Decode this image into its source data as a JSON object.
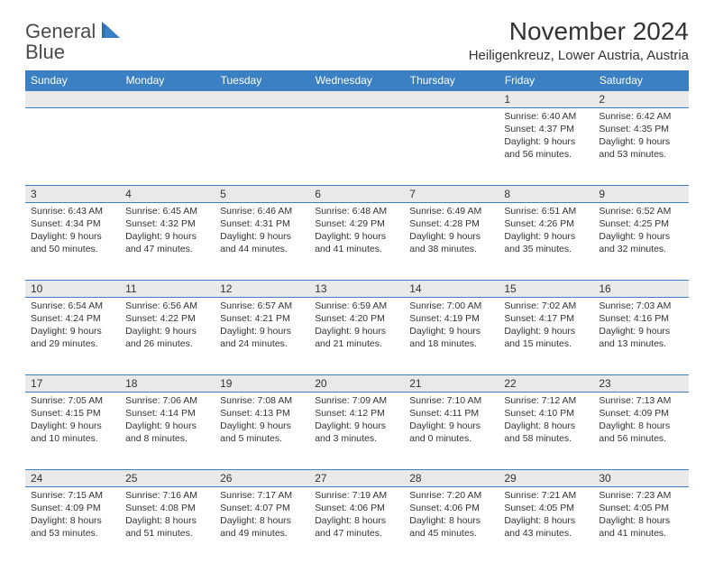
{
  "brand": {
    "line1": "General",
    "line2": "Blue"
  },
  "title": "November 2024",
  "location": "Heiligenkreuz, Lower Austria, Austria",
  "colors": {
    "header_bg": "#3a80c3",
    "header_text": "#ffffff",
    "daynum_bg": "#e9e9e9",
    "border": "#3a80c3",
    "text": "#333333",
    "brand_blue": "#2f6fb0"
  },
  "day_headers": [
    "Sunday",
    "Monday",
    "Tuesday",
    "Wednesday",
    "Thursday",
    "Friday",
    "Saturday"
  ],
  "weeks": [
    [
      {
        "n": "",
        "sunrise": "",
        "sunset": "",
        "daylight": ""
      },
      {
        "n": "",
        "sunrise": "",
        "sunset": "",
        "daylight": ""
      },
      {
        "n": "",
        "sunrise": "",
        "sunset": "",
        "daylight": ""
      },
      {
        "n": "",
        "sunrise": "",
        "sunset": "",
        "daylight": ""
      },
      {
        "n": "",
        "sunrise": "",
        "sunset": "",
        "daylight": ""
      },
      {
        "n": "1",
        "sunrise": "Sunrise: 6:40 AM",
        "sunset": "Sunset: 4:37 PM",
        "daylight": "Daylight: 9 hours and 56 minutes."
      },
      {
        "n": "2",
        "sunrise": "Sunrise: 6:42 AM",
        "sunset": "Sunset: 4:35 PM",
        "daylight": "Daylight: 9 hours and 53 minutes."
      }
    ],
    [
      {
        "n": "3",
        "sunrise": "Sunrise: 6:43 AM",
        "sunset": "Sunset: 4:34 PM",
        "daylight": "Daylight: 9 hours and 50 minutes."
      },
      {
        "n": "4",
        "sunrise": "Sunrise: 6:45 AM",
        "sunset": "Sunset: 4:32 PM",
        "daylight": "Daylight: 9 hours and 47 minutes."
      },
      {
        "n": "5",
        "sunrise": "Sunrise: 6:46 AM",
        "sunset": "Sunset: 4:31 PM",
        "daylight": "Daylight: 9 hours and 44 minutes."
      },
      {
        "n": "6",
        "sunrise": "Sunrise: 6:48 AM",
        "sunset": "Sunset: 4:29 PM",
        "daylight": "Daylight: 9 hours and 41 minutes."
      },
      {
        "n": "7",
        "sunrise": "Sunrise: 6:49 AM",
        "sunset": "Sunset: 4:28 PM",
        "daylight": "Daylight: 9 hours and 38 minutes."
      },
      {
        "n": "8",
        "sunrise": "Sunrise: 6:51 AM",
        "sunset": "Sunset: 4:26 PM",
        "daylight": "Daylight: 9 hours and 35 minutes."
      },
      {
        "n": "9",
        "sunrise": "Sunrise: 6:52 AM",
        "sunset": "Sunset: 4:25 PM",
        "daylight": "Daylight: 9 hours and 32 minutes."
      }
    ],
    [
      {
        "n": "10",
        "sunrise": "Sunrise: 6:54 AM",
        "sunset": "Sunset: 4:24 PM",
        "daylight": "Daylight: 9 hours and 29 minutes."
      },
      {
        "n": "11",
        "sunrise": "Sunrise: 6:56 AM",
        "sunset": "Sunset: 4:22 PM",
        "daylight": "Daylight: 9 hours and 26 minutes."
      },
      {
        "n": "12",
        "sunrise": "Sunrise: 6:57 AM",
        "sunset": "Sunset: 4:21 PM",
        "daylight": "Daylight: 9 hours and 24 minutes."
      },
      {
        "n": "13",
        "sunrise": "Sunrise: 6:59 AM",
        "sunset": "Sunset: 4:20 PM",
        "daylight": "Daylight: 9 hours and 21 minutes."
      },
      {
        "n": "14",
        "sunrise": "Sunrise: 7:00 AM",
        "sunset": "Sunset: 4:19 PM",
        "daylight": "Daylight: 9 hours and 18 minutes."
      },
      {
        "n": "15",
        "sunrise": "Sunrise: 7:02 AM",
        "sunset": "Sunset: 4:17 PM",
        "daylight": "Daylight: 9 hours and 15 minutes."
      },
      {
        "n": "16",
        "sunrise": "Sunrise: 7:03 AM",
        "sunset": "Sunset: 4:16 PM",
        "daylight": "Daylight: 9 hours and 13 minutes."
      }
    ],
    [
      {
        "n": "17",
        "sunrise": "Sunrise: 7:05 AM",
        "sunset": "Sunset: 4:15 PM",
        "daylight": "Daylight: 9 hours and 10 minutes."
      },
      {
        "n": "18",
        "sunrise": "Sunrise: 7:06 AM",
        "sunset": "Sunset: 4:14 PM",
        "daylight": "Daylight: 9 hours and 8 minutes."
      },
      {
        "n": "19",
        "sunrise": "Sunrise: 7:08 AM",
        "sunset": "Sunset: 4:13 PM",
        "daylight": "Daylight: 9 hours and 5 minutes."
      },
      {
        "n": "20",
        "sunrise": "Sunrise: 7:09 AM",
        "sunset": "Sunset: 4:12 PM",
        "daylight": "Daylight: 9 hours and 3 minutes."
      },
      {
        "n": "21",
        "sunrise": "Sunrise: 7:10 AM",
        "sunset": "Sunset: 4:11 PM",
        "daylight": "Daylight: 9 hours and 0 minutes."
      },
      {
        "n": "22",
        "sunrise": "Sunrise: 7:12 AM",
        "sunset": "Sunset: 4:10 PM",
        "daylight": "Daylight: 8 hours and 58 minutes."
      },
      {
        "n": "23",
        "sunrise": "Sunrise: 7:13 AM",
        "sunset": "Sunset: 4:09 PM",
        "daylight": "Daylight: 8 hours and 56 minutes."
      }
    ],
    [
      {
        "n": "24",
        "sunrise": "Sunrise: 7:15 AM",
        "sunset": "Sunset: 4:09 PM",
        "daylight": "Daylight: 8 hours and 53 minutes."
      },
      {
        "n": "25",
        "sunrise": "Sunrise: 7:16 AM",
        "sunset": "Sunset: 4:08 PM",
        "daylight": "Daylight: 8 hours and 51 minutes."
      },
      {
        "n": "26",
        "sunrise": "Sunrise: 7:17 AM",
        "sunset": "Sunset: 4:07 PM",
        "daylight": "Daylight: 8 hours and 49 minutes."
      },
      {
        "n": "27",
        "sunrise": "Sunrise: 7:19 AM",
        "sunset": "Sunset: 4:06 PM",
        "daylight": "Daylight: 8 hours and 47 minutes."
      },
      {
        "n": "28",
        "sunrise": "Sunrise: 7:20 AM",
        "sunset": "Sunset: 4:06 PM",
        "daylight": "Daylight: 8 hours and 45 minutes."
      },
      {
        "n": "29",
        "sunrise": "Sunrise: 7:21 AM",
        "sunset": "Sunset: 4:05 PM",
        "daylight": "Daylight: 8 hours and 43 minutes."
      },
      {
        "n": "30",
        "sunrise": "Sunrise: 7:23 AM",
        "sunset": "Sunset: 4:05 PM",
        "daylight": "Daylight: 8 hours and 41 minutes."
      }
    ]
  ]
}
